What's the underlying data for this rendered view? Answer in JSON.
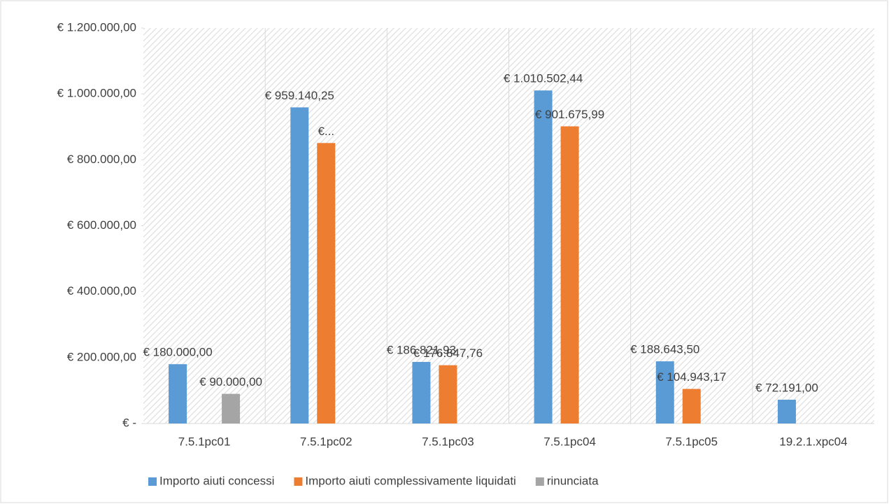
{
  "chart_data": {
    "type": "bar",
    "categories": [
      "7.5.1pc01",
      "7.5.1pc02",
      "7.5.1pc03",
      "7.5.1pc04",
      "7.5.1pc05",
      "19.2.1.xpc04"
    ],
    "series": [
      {
        "name": "Importo aiuti concessi",
        "color": "#5b9bd5",
        "values": [
          180000,
          959140.25,
          186821.93,
          1010502.44,
          188643.5,
          72191
        ],
        "value_labels": [
          "€ 180.000,00",
          "€ 959.140,25",
          "€ 186.821,93",
          "€ 1.010.502,44",
          "€ 188.643,50",
          "€ 72.191,00"
        ]
      },
      {
        "name": "Importo aiuti complessivamente liquidati",
        "color": "#ed7d31",
        "values": [
          null,
          851000,
          176847.76,
          901675.99,
          104943.17,
          null
        ],
        "value_labels": [
          null,
          "€...",
          "€ 176.847,76",
          "€ 901.675,99",
          "€ 104.943,17",
          null
        ]
      },
      {
        "name": "rinunciata",
        "color": "#a5a5a5",
        "values": [
          90000,
          null,
          null,
          null,
          null,
          null
        ],
        "value_labels": [
          "€ 90.000,00",
          null,
          null,
          null,
          null,
          null
        ]
      }
    ],
    "ylim": [
      0,
      1200000
    ],
    "yticks": [
      {
        "value": 0,
        "label": "€ -"
      },
      {
        "value": 200000,
        "label": "€ 200.000,00"
      },
      {
        "value": 400000,
        "label": "€ 400.000,00"
      },
      {
        "value": 600000,
        "label": "€ 600.000,00"
      },
      {
        "value": 800000,
        "label": "€ 800.000,00"
      },
      {
        "value": 1000000,
        "label": "€ 1.000.000,00"
      },
      {
        "value": 1200000,
        "label": "€ 1.200.000,00"
      }
    ],
    "legend": "bottom"
  }
}
